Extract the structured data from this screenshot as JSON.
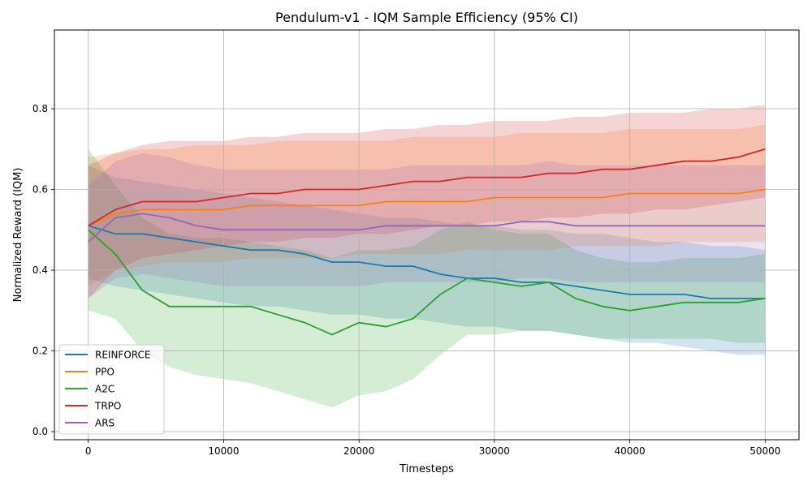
{
  "chart_data": {
    "type": "line",
    "title": "Pendulum-v1 - IQM Sample Efficiency (95% CI)",
    "xlabel": "Timesteps",
    "ylabel": "Normalized Reward (IQM)",
    "xlim": [
      -2500,
      52500
    ],
    "ylim": [
      -0.02,
      0.995
    ],
    "xticks": [
      0,
      10000,
      20000,
      30000,
      40000,
      50000
    ],
    "xtick_labels": [
      "0",
      "10000",
      "20000",
      "30000",
      "40000",
      "50000"
    ],
    "yticks": [
      0.0,
      0.2,
      0.4,
      0.6,
      0.8
    ],
    "ytick_labels": [
      "0.0",
      "0.2",
      "0.4",
      "0.6",
      "0.8"
    ],
    "grid": true,
    "legend_position": "lower left",
    "confidence_band": true,
    "x": [
      0,
      2000,
      4000,
      6000,
      8000,
      10000,
      12000,
      14000,
      16000,
      18000,
      20000,
      22000,
      24000,
      26000,
      28000,
      30000,
      32000,
      34000,
      36000,
      38000,
      40000,
      42000,
      44000,
      46000,
      48000,
      50000
    ],
    "series": [
      {
        "name": "REINFORCE",
        "color": "#1f77b4",
        "values": [
          0.51,
          0.49,
          0.49,
          0.48,
          0.47,
          0.46,
          0.45,
          0.45,
          0.44,
          0.42,
          0.42,
          0.41,
          0.41,
          0.39,
          0.38,
          0.38,
          0.37,
          0.37,
          0.36,
          0.35,
          0.34,
          0.34,
          0.34,
          0.33,
          0.33,
          0.33
        ],
        "ci_low": [
          0.38,
          0.36,
          0.35,
          0.34,
          0.33,
          0.32,
          0.31,
          0.31,
          0.3,
          0.29,
          0.29,
          0.28,
          0.28,
          0.27,
          0.26,
          0.26,
          0.25,
          0.25,
          0.24,
          0.23,
          0.22,
          0.22,
          0.21,
          0.2,
          0.19,
          0.19
        ],
        "ci_high": [
          0.66,
          0.63,
          0.62,
          0.61,
          0.6,
          0.59,
          0.58,
          0.57,
          0.56,
          0.55,
          0.54,
          0.53,
          0.53,
          0.52,
          0.51,
          0.51,
          0.5,
          0.5,
          0.49,
          0.49,
          0.48,
          0.47,
          0.47,
          0.46,
          0.46,
          0.45
        ]
      },
      {
        "name": "PPO",
        "color": "#ff7f0e",
        "values": [
          0.51,
          0.54,
          0.55,
          0.55,
          0.55,
          0.55,
          0.56,
          0.56,
          0.56,
          0.56,
          0.56,
          0.57,
          0.57,
          0.57,
          0.57,
          0.58,
          0.58,
          0.58,
          0.58,
          0.58,
          0.59,
          0.59,
          0.59,
          0.59,
          0.59,
          0.6
        ],
        "ci_low": [
          0.36,
          0.4,
          0.41,
          0.42,
          0.42,
          0.42,
          0.43,
          0.43,
          0.43,
          0.43,
          0.44,
          0.44,
          0.44,
          0.44,
          0.45,
          0.45,
          0.45,
          0.45,
          0.46,
          0.46,
          0.46,
          0.46,
          0.47,
          0.47,
          0.47,
          0.47
        ],
        "ci_high": [
          0.68,
          0.69,
          0.7,
          0.7,
          0.71,
          0.71,
          0.71,
          0.72,
          0.72,
          0.72,
          0.72,
          0.72,
          0.73,
          0.73,
          0.73,
          0.73,
          0.74,
          0.74,
          0.74,
          0.74,
          0.75,
          0.75,
          0.75,
          0.75,
          0.75,
          0.76
        ]
      },
      {
        "name": "A2C",
        "color": "#2ca02c",
        "values": [
          0.5,
          0.44,
          0.35,
          0.31,
          0.31,
          0.31,
          0.31,
          0.29,
          0.27,
          0.24,
          0.27,
          0.26,
          0.28,
          0.34,
          0.38,
          0.37,
          0.36,
          0.37,
          0.33,
          0.31,
          0.3,
          0.31,
          0.32,
          0.32,
          0.32,
          0.33
        ],
        "ci_low": [
          0.3,
          0.28,
          0.2,
          0.16,
          0.14,
          0.13,
          0.12,
          0.1,
          0.08,
          0.06,
          0.09,
          0.1,
          0.13,
          0.19,
          0.24,
          0.24,
          0.25,
          0.25,
          0.24,
          0.23,
          0.23,
          0.23,
          0.23,
          0.23,
          0.22,
          0.22
        ],
        "ci_high": [
          0.7,
          0.61,
          0.53,
          0.49,
          0.48,
          0.48,
          0.47,
          0.46,
          0.45,
          0.43,
          0.45,
          0.45,
          0.46,
          0.5,
          0.52,
          0.5,
          0.49,
          0.49,
          0.45,
          0.43,
          0.42,
          0.42,
          0.43,
          0.43,
          0.43,
          0.44
        ]
      },
      {
        "name": "TRPO",
        "color": "#d62728",
        "values": [
          0.51,
          0.55,
          0.57,
          0.57,
          0.57,
          0.58,
          0.59,
          0.59,
          0.6,
          0.6,
          0.6,
          0.61,
          0.62,
          0.62,
          0.63,
          0.63,
          0.63,
          0.64,
          0.64,
          0.65,
          0.65,
          0.66,
          0.67,
          0.67,
          0.68,
          0.7
        ],
        "ci_low": [
          0.33,
          0.4,
          0.43,
          0.44,
          0.45,
          0.46,
          0.47,
          0.47,
          0.48,
          0.48,
          0.49,
          0.49,
          0.5,
          0.51,
          0.51,
          0.52,
          0.52,
          0.53,
          0.53,
          0.54,
          0.54,
          0.55,
          0.55,
          0.56,
          0.57,
          0.58
        ],
        "ci_high": [
          0.66,
          0.69,
          0.71,
          0.72,
          0.72,
          0.72,
          0.73,
          0.73,
          0.74,
          0.74,
          0.74,
          0.75,
          0.75,
          0.76,
          0.76,
          0.77,
          0.77,
          0.77,
          0.78,
          0.78,
          0.79,
          0.79,
          0.79,
          0.8,
          0.8,
          0.81
        ]
      },
      {
        "name": "ARS",
        "color": "#9467bd",
        "values": [
          0.47,
          0.53,
          0.54,
          0.53,
          0.51,
          0.5,
          0.5,
          0.5,
          0.5,
          0.5,
          0.5,
          0.51,
          0.51,
          0.51,
          0.51,
          0.51,
          0.52,
          0.52,
          0.51,
          0.51,
          0.51,
          0.51,
          0.51,
          0.51,
          0.51,
          0.51
        ],
        "ci_low": [
          0.33,
          0.38,
          0.39,
          0.38,
          0.37,
          0.36,
          0.36,
          0.36,
          0.36,
          0.36,
          0.36,
          0.37,
          0.37,
          0.37,
          0.37,
          0.37,
          0.38,
          0.38,
          0.37,
          0.37,
          0.37,
          0.37,
          0.37,
          0.37,
          0.37,
          0.37
        ],
        "ci_high": [
          0.61,
          0.67,
          0.69,
          0.68,
          0.66,
          0.65,
          0.65,
          0.65,
          0.65,
          0.65,
          0.65,
          0.65,
          0.66,
          0.66,
          0.66,
          0.66,
          0.66,
          0.67,
          0.66,
          0.66,
          0.66,
          0.66,
          0.66,
          0.66,
          0.66,
          0.66
        ]
      }
    ]
  }
}
